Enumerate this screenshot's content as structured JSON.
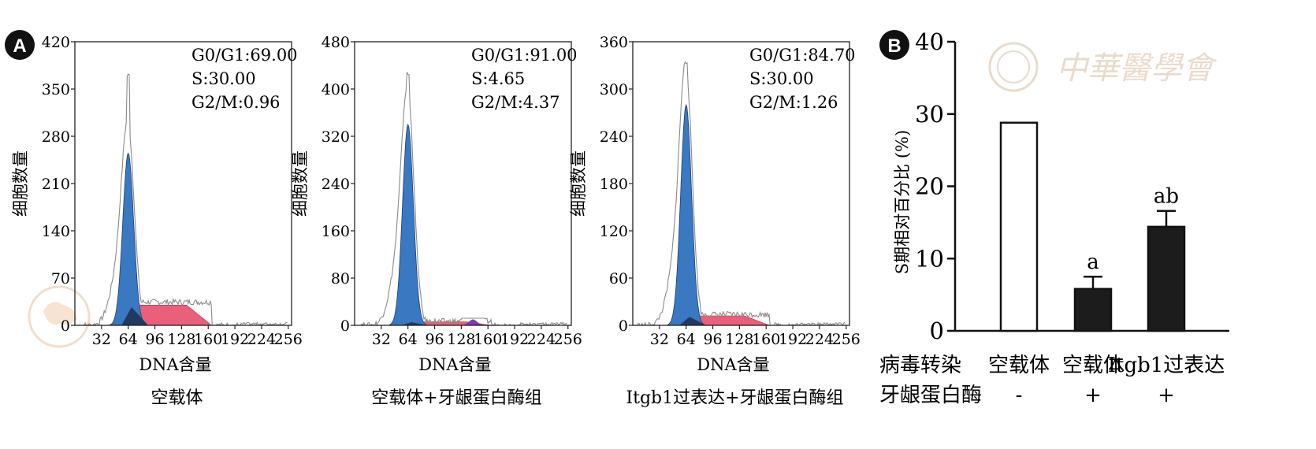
{
  "panel_a": {
    "badge": "A",
    "histograms": [
      {
        "xlabel": "DNA含量",
        "ylabel": "细胞数量",
        "caption": "空载体",
        "yticks": [
          "0",
          "70",
          "140",
          "210",
          "280",
          "350",
          "420"
        ],
        "ymax": 420,
        "xticks": [
          "32",
          "64",
          "96",
          "128",
          "160",
          "192",
          "224",
          "256"
        ],
        "annotations": [
          "G0/G1:69.00",
          "S:30.00",
          "G2/M:0.96"
        ],
        "g1_peak": {
          "center": 64,
          "height": 255
        },
        "raw_peak_height": 370,
        "s_phase_level": 30
      },
      {
        "xlabel": "DNA含量",
        "ylabel": "细胞数量",
        "caption": "空载体+牙龈蛋白酶组",
        "yticks": [
          "0",
          "80",
          "160",
          "240",
          "320",
          "400",
          "480"
        ],
        "ymax": 480,
        "xticks": [
          "32",
          "64",
          "96",
          "128",
          "160",
          "192",
          "224",
          "256"
        ],
        "annotations": [
          "G0/G1:91.00",
          "S:4.65",
          "G2/M:4.37"
        ],
        "g1_peak": {
          "center": 64,
          "height": 340
        },
        "raw_peak_height": 425,
        "s_phase_level": 6
      },
      {
        "xlabel": "DNA含量",
        "ylabel": "细胞数量",
        "caption": "Itgb1过表达+牙龈蛋白酶组",
        "yticks": [
          "0",
          "60",
          "120",
          "180",
          "240",
          "300",
          "360"
        ],
        "ymax": 360,
        "xticks": [
          "32",
          "64",
          "96",
          "128",
          "160",
          "192",
          "224",
          "256"
        ],
        "annotations": [
          "G0/G1:84.70",
          "S:30.00",
          "G2/M:1.26"
        ],
        "g1_peak": {
          "center": 64,
          "height": 280
        },
        "raw_peak_height": 335,
        "s_phase_level": 12
      }
    ]
  },
  "panel_b": {
    "badge": "B",
    "watermark": "中華醫學會",
    "row_labels": [
      "病毒转染",
      "牙龈蛋白酶"
    ],
    "group_labels": [
      "空载体",
      "空载体",
      "Itgb1过表达"
    ],
    "treatment_marks": [
      "-",
      "+",
      "+"
    ]
  },
  "chart_data": [
    {
      "type": "bar",
      "title": "",
      "ylabel": "S期相对百分比 (%)",
      "ylim": [
        0,
        40
      ],
      "yticks": [
        "0",
        "10",
        "20",
        "30",
        "40"
      ],
      "categories": [
        "空载体",
        "空载体",
        "Itgb1过表达"
      ],
      "values": [
        28.8,
        5.8,
        14.4
      ],
      "errors": [
        0,
        1.7,
        2.2
      ],
      "significance": [
        "",
        "a",
        "ab"
      ],
      "fills": [
        "#ffffff",
        "#1c1c1c",
        "#1c1c1c"
      ]
    }
  ],
  "colors": {
    "g1_fill": "#3a78c1",
    "s_fill": "#e8607a",
    "g2_fill": "#7a3fb0",
    "dark_fill": "#1d2e52",
    "raw_line": "#8a8a8a",
    "badge": "#111111"
  }
}
